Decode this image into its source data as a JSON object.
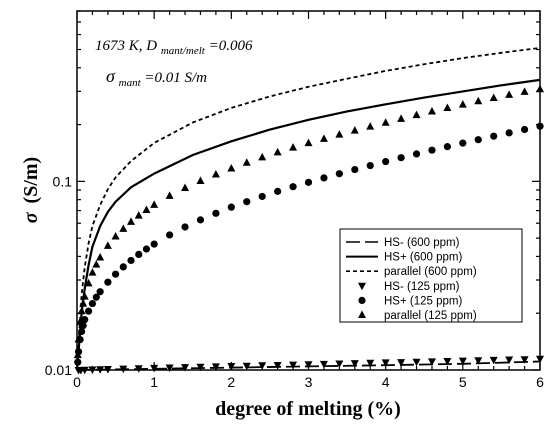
{
  "chart_data": {
    "type": "line",
    "xlabel": "degree of melting (%)",
    "ylabel_symbol": "σ",
    "ylabel_unit": "(S/m)",
    "xlim": [
      0,
      6
    ],
    "ylim": [
      0.01,
      0.8
    ],
    "yscale": "log",
    "grid": false,
    "legend_position": "bottom-right",
    "x_ticks": [
      "0",
      "1",
      "2",
      "3",
      "4",
      "5",
      "6"
    ],
    "y_ticks": [
      {
        "value": 0.01,
        "label": "0.01"
      },
      {
        "value": 0.1,
        "label": "0.1"
      }
    ],
    "annotations": {
      "line1_main": "1673 K, D",
      "line1_sub": "mant/melt",
      "line1_end": "=0.006",
      "line2_sigma": "σ",
      "line2_sub": "mant",
      "line2_end": "=0.01 S/m"
    },
    "series": [
      {
        "name": "HS- (600 ppm)",
        "style": "long-dash",
        "x": [
          0,
          1,
          2,
          3,
          4,
          5,
          6
        ],
        "y": [
          0.01,
          0.01015,
          0.0103,
          0.01045,
          0.0106,
          0.01078,
          0.0111
        ]
      },
      {
        "name": "HS+ (600 ppm)",
        "style": "solid",
        "x": [
          0,
          0.01,
          0.03,
          0.06,
          0.1,
          0.15,
          0.2,
          0.3,
          0.4,
          0.5,
          0.7,
          1,
          1.5,
          2,
          2.5,
          3,
          3.5,
          4,
          4.5,
          5,
          5.5,
          6
        ],
        "y": [
          0.01,
          0.0115,
          0.014,
          0.02,
          0.027,
          0.036,
          0.045,
          0.058,
          0.069,
          0.078,
          0.093,
          0.11,
          0.138,
          0.163,
          0.188,
          0.212,
          0.235,
          0.256,
          0.278,
          0.3,
          0.323,
          0.345
        ]
      },
      {
        "name": "parallel (600 ppm)",
        "style": "short-dash",
        "x": [
          0,
          0.01,
          0.03,
          0.06,
          0.1,
          0.15,
          0.2,
          0.3,
          0.4,
          0.5,
          0.7,
          1,
          1.5,
          2,
          2.5,
          3,
          3.5,
          4,
          4.5,
          5,
          5.5,
          6
        ],
        "y": [
          0.01,
          0.012,
          0.016,
          0.025,
          0.035,
          0.047,
          0.058,
          0.075,
          0.091,
          0.105,
          0.128,
          0.16,
          0.205,
          0.245,
          0.282,
          0.317,
          0.35,
          0.385,
          0.418,
          0.45,
          0.48,
          0.51
        ]
      },
      {
        "name": "HS- (125 ppm)",
        "style": "down-triangle",
        "x": [
          0.02,
          0.05,
          0.1,
          0.2,
          0.3,
          0.4,
          0.6,
          0.8,
          1,
          1.2,
          1.4,
          1.6,
          1.8,
          2,
          2.2,
          2.4,
          2.6,
          2.8,
          3,
          3.2,
          3.4,
          3.6,
          3.8,
          4,
          4.2,
          4.4,
          4.6,
          4.8,
          5,
          5.2,
          5.4,
          5.6,
          5.8,
          6
        ],
        "y": [
          0.01,
          0.01,
          0.01003,
          0.01006,
          0.01009,
          0.01012,
          0.01017,
          0.01022,
          0.01027,
          0.01031,
          0.01036,
          0.0104,
          0.01045,
          0.0105,
          0.01054,
          0.01059,
          0.01063,
          0.01068,
          0.01073,
          0.01077,
          0.01082,
          0.01087,
          0.01092,
          0.01097,
          0.01101,
          0.01106,
          0.01111,
          0.01116,
          0.01121,
          0.01126,
          0.01131,
          0.01136,
          0.01141,
          0.01148
        ]
      },
      {
        "name": "HS+ (125 ppm)",
        "style": "circle",
        "x": [
          0.01,
          0.02,
          0.04,
          0.06,
          0.08,
          0.1,
          0.15,
          0.2,
          0.25,
          0.3,
          0.4,
          0.5,
          0.6,
          0.7,
          0.8,
          0.9,
          1,
          1.2,
          1.4,
          1.6,
          1.8,
          2,
          2.2,
          2.4,
          2.6,
          2.8,
          3,
          3.2,
          3.4,
          3.6,
          3.8,
          4,
          4.2,
          4.4,
          4.6,
          4.8,
          5,
          5.2,
          5.4,
          5.6,
          5.8,
          6
        ],
        "y": [
          0.011,
          0.0125,
          0.0145,
          0.016,
          0.0172,
          0.0185,
          0.0205,
          0.0225,
          0.0243,
          0.026,
          0.0292,
          0.0322,
          0.0352,
          0.0381,
          0.041,
          0.0438,
          0.0465,
          0.052,
          0.0573,
          0.0625,
          0.0677,
          0.073,
          0.078,
          0.0832,
          0.0885,
          0.0937,
          0.0988,
          0.1043,
          0.1098,
          0.1155,
          0.1213,
          0.1273,
          0.1335,
          0.1398,
          0.1463,
          0.1528,
          0.1595,
          0.1663,
          0.1735,
          0.1808,
          0.1883,
          0.196
        ]
      },
      {
        "name": "parallel (125 ppm)",
        "style": "up-triangle",
        "x": [
          0.01,
          0.02,
          0.04,
          0.06,
          0.08,
          0.1,
          0.15,
          0.2,
          0.25,
          0.3,
          0.4,
          0.5,
          0.6,
          0.7,
          0.8,
          0.9,
          1,
          1.2,
          1.4,
          1.6,
          1.8,
          2,
          2.2,
          2.4,
          2.6,
          2.8,
          3,
          3.2,
          3.4,
          3.6,
          3.8,
          4,
          4.2,
          4.4,
          4.6,
          4.8,
          5,
          5.2,
          5.4,
          5.6,
          5.8,
          6
        ],
        "y": [
          0.012,
          0.0145,
          0.018,
          0.0205,
          0.0225,
          0.0245,
          0.0288,
          0.0328,
          0.0362,
          0.0395,
          0.0455,
          0.051,
          0.056,
          0.061,
          0.0658,
          0.0705,
          0.075,
          0.0838,
          0.0922,
          0.1005,
          0.1088,
          0.117,
          0.1255,
          0.134,
          0.1425,
          0.151,
          0.1595,
          0.168,
          0.1768,
          0.1858,
          0.195,
          0.2045,
          0.2143,
          0.2243,
          0.2345,
          0.2448,
          0.2552,
          0.2658,
          0.2765,
          0.2872,
          0.298,
          0.308
        ]
      }
    ]
  }
}
